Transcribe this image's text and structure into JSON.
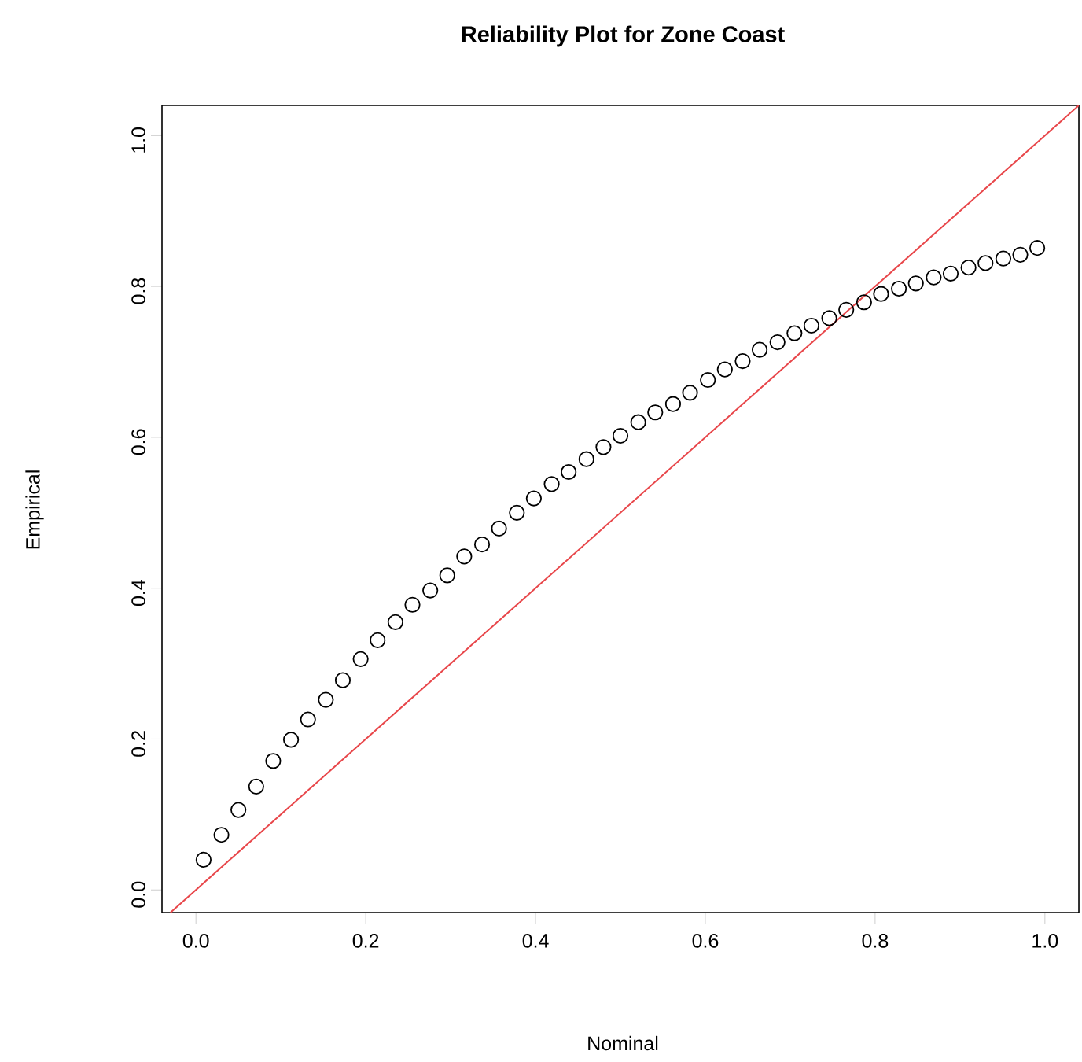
{
  "chart_data": {
    "type": "scatter",
    "title": "Reliability Plot for Zone Coast",
    "xlabel": "Nominal",
    "ylabel": "Empirical",
    "xlim": [
      -0.04,
      1.04
    ],
    "ylim": [
      -0.03,
      1.04
    ],
    "xticks": [
      {
        "value": 0,
        "label": "0.0"
      },
      0.2,
      0.4,
      0.6,
      0.8,
      {
        "value": 1,
        "label": "1.0"
      }
    ],
    "yticks": [
      {
        "value": 0,
        "label": "0.0"
      },
      0.2,
      0.4,
      0.6,
      0.8,
      {
        "value": 1,
        "label": "1.0"
      }
    ],
    "marker": "circle",
    "series": [
      {
        "color": "#000000",
        "x": [
          0.009,
          0.03,
          0.05,
          0.071,
          0.091,
          0.112,
          0.132,
          0.153,
          0.173,
          0.194,
          0.214,
          0.235,
          0.255,
          0.276,
          0.296,
          0.316,
          0.337,
          0.357,
          0.378,
          0.398,
          0.419,
          0.439,
          0.46,
          0.48,
          0.5,
          0.521,
          0.541,
          0.562,
          0.582,
          0.603,
          0.623,
          0.644,
          0.664,
          0.685,
          0.705,
          0.725,
          0.746,
          0.766,
          0.787,
          0.807,
          0.828,
          0.848,
          0.869,
          0.889,
          0.91,
          0.93,
          0.951,
          0.971,
          0.991
        ],
        "values": [
          0.04,
          0.073,
          0.106,
          0.137,
          0.171,
          0.199,
          0.226,
          0.252,
          0.278,
          0.306,
          0.331,
          0.355,
          0.378,
          0.397,
          0.417,
          0.442,
          0.458,
          0.479,
          0.5,
          0.519,
          0.538,
          0.554,
          0.571,
          0.587,
          0.602,
          0.62,
          0.633,
          0.644,
          0.659,
          0.676,
          0.69,
          0.701,
          0.716,
          0.726,
          0.738,
          0.748,
          0.758,
          0.769,
          0.779,
          0.79,
          0.797,
          0.804,
          0.812,
          0.817,
          0.825,
          0.831,
          0.837,
          0.842,
          0.851
        ]
      },
      {
        "type": "line",
        "color": "#e8464a",
        "marker": "none",
        "line_style": "solid",
        "x": [
          -0.03,
          1.04
        ],
        "values": [
          -0.03,
          1.04
        ]
      }
    ]
  }
}
